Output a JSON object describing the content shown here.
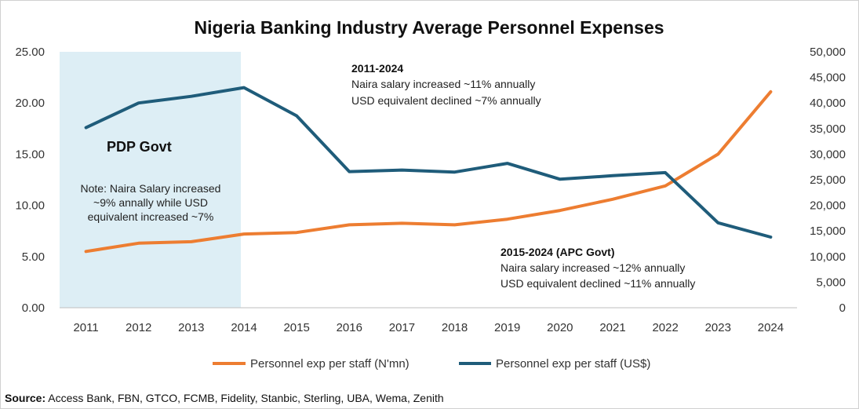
{
  "chart_data": {
    "type": "line",
    "title": "Nigeria Banking Industry Average Personnel Expenses",
    "categories": [
      "2011",
      "2012",
      "2013",
      "2014",
      "2015",
      "2016",
      "2017",
      "2018",
      "2019",
      "2020",
      "2021",
      "2022",
      "2023",
      "2024"
    ],
    "series": [
      {
        "name": "Personnel exp per staff (N'mn)",
        "axis": "left",
        "color": "#ED7D31",
        "values": [
          5.5,
          6.3,
          6.45,
          7.2,
          7.35,
          8.1,
          8.25,
          8.1,
          8.65,
          9.5,
          10.6,
          11.9,
          15.0,
          21.1
        ]
      },
      {
        "name": "Personnel exp per staff (US$)",
        "axis": "right",
        "color": "#1F5C7A",
        "values": [
          35200,
          40000,
          41300,
          43000,
          37500,
          26600,
          26900,
          26500,
          28200,
          25100,
          25800,
          26400,
          16600,
          13800
        ]
      }
    ],
    "left_axis": {
      "min": 0,
      "max": 25,
      "ticks": [
        "0.00",
        "5.00",
        "10.00",
        "15.00",
        "20.00",
        "25.00"
      ]
    },
    "right_axis": {
      "min": 0,
      "max": 50000,
      "ticks": [
        "0",
        "5,000",
        "10,000",
        "15,000",
        "20,000",
        "25,000",
        "30,000",
        "35,000",
        "40,000",
        "45,000",
        "50,000"
      ]
    },
    "shaded_region": {
      "from": "2011",
      "to": "2014",
      "label": "PDP Govt",
      "color": "#DDEEF5"
    },
    "annotations": {
      "pdp_note": [
        "Note: Naira Salary increased",
        "~9% annally while USD",
        "equivalent increased ~7%"
      ],
      "note_2011": {
        "heading": "2011-2024",
        "lines": [
          "Naira salary increased ~11% annually",
          "USD equivalent declined ~7% annually"
        ]
      },
      "note_2015": {
        "heading": "2015-2024 (APC Govt)",
        "lines": [
          "Naira salary increased ~12% annually",
          "USD equivalent declined ~11% annually"
        ]
      }
    },
    "legend": {
      "placement": "bottom-center"
    },
    "source": {
      "label": "Source:",
      "text": "Access Bank, FBN, GTCO, FCMB, Fidelity, Stanbic, Sterling, UBA, Wema, Zenith"
    }
  }
}
